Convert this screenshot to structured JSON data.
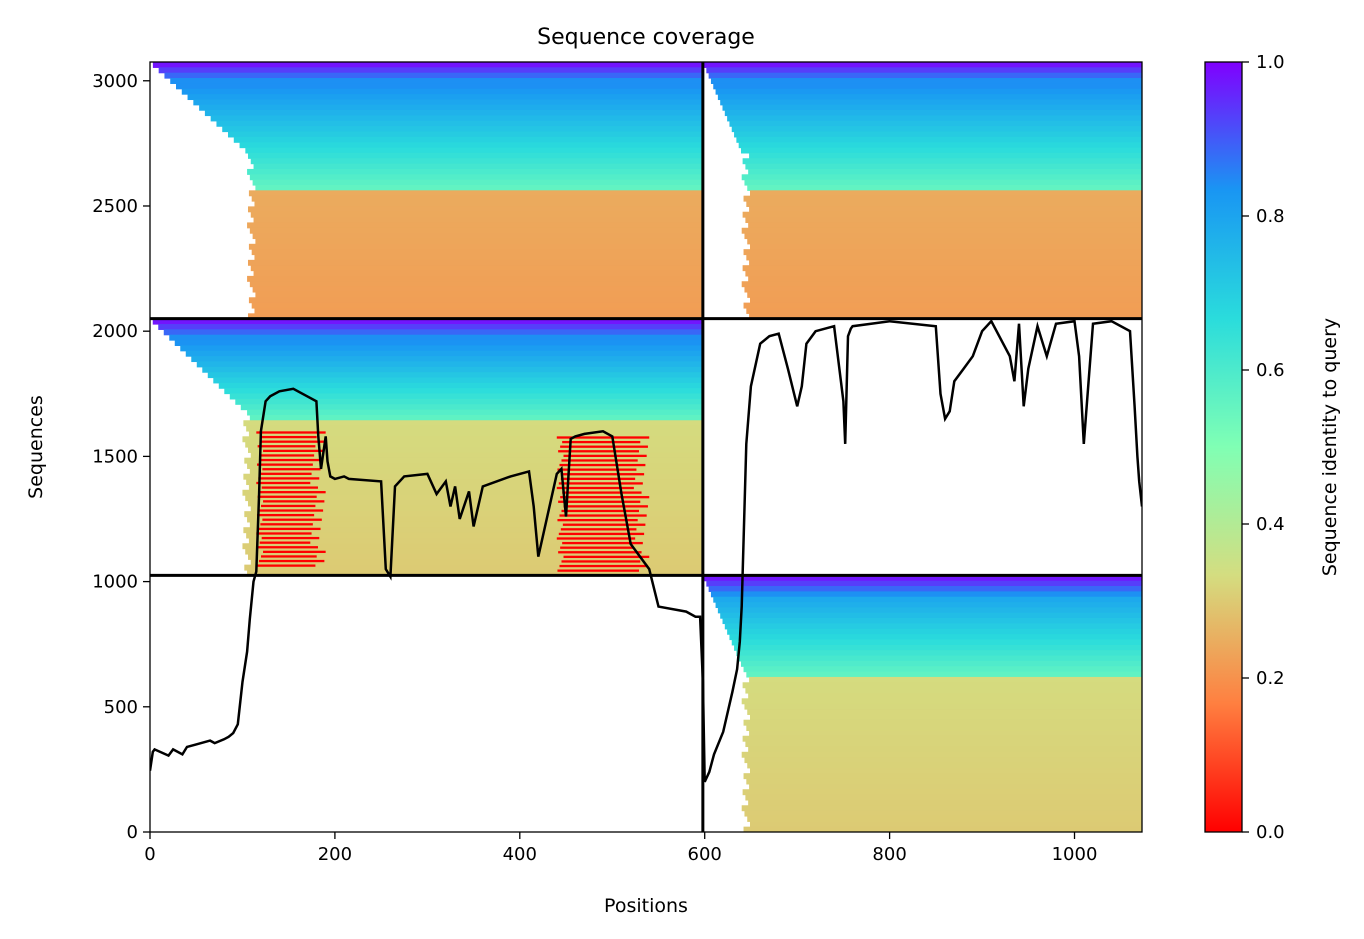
{
  "chart_data": {
    "type": "heatmap",
    "title": "Sequence coverage",
    "xlabel": "Positions",
    "ylabel": "Sequences",
    "xlim": [
      0,
      1073
    ],
    "ylim": [
      0,
      3075
    ],
    "x_ticks": [
      0,
      200,
      400,
      600,
      800,
      1000
    ],
    "y_ticks": [
      0,
      500,
      1000,
      1500,
      2000,
      2500,
      3000
    ],
    "grid": false,
    "colormap": "rainbow_r",
    "colorbar": {
      "label": "Sequence identity to query",
      "range": [
        0,
        1
      ],
      "ticks": [
        "0.0",
        "0.2",
        "0.4",
        "0.6",
        "0.8",
        "1.0"
      ],
      "colors": [
        "#ff0000",
        "#ff7f40",
        "#d4dd80",
        "#80ffb4",
        "#2adcdc",
        "#1996f3",
        "#8000ff"
      ]
    },
    "block_boundaries": {
      "x": [
        598
      ],
      "y": [
        1025,
        2050
      ]
    },
    "blocks": [
      {
        "x": [
          0,
          598
        ],
        "y": [
          2050,
          3075
        ],
        "start_x": 105,
        "start_x_upper": 0,
        "end_x": 598,
        "identity_top": 0.85,
        "identity_bottom": 0.22,
        "split_fraction": 0.5
      },
      {
        "x": [
          598,
          1073
        ],
        "y": [
          2050,
          3075
        ],
        "start_x": 640,
        "start_x_upper": 598,
        "end_x": 1073,
        "identity_top": 0.85,
        "identity_bottom": 0.22,
        "split_fraction": 0.5
      },
      {
        "x": [
          0,
          598
        ],
        "y": [
          1025,
          2050
        ],
        "start_x": 100,
        "start_x_upper": 0,
        "end_x": 598,
        "identity_top": 0.85,
        "identity_bottom": 0.3,
        "split_fraction": 0.4
      },
      {
        "x": [
          598,
          1073
        ],
        "y": [
          0,
          1025
        ],
        "start_x": 640,
        "start_x_upper": 598,
        "end_x": 1073,
        "identity_top": 0.8,
        "identity_bottom": 0.3,
        "split_fraction": 0.4
      }
    ],
    "red_regions": [
      {
        "x": [
          115,
          190
        ],
        "y": [
          1050,
          1600
        ],
        "identity": 0.0
      },
      {
        "x": [
          440,
          540
        ],
        "y": [
          1030,
          1580
        ],
        "identity": 0.0
      }
    ],
    "series": [
      {
        "type": "line",
        "color": "#000000",
        "x": [
          0,
          3,
          5,
          20,
          25,
          35,
          40,
          50,
          65,
          70,
          80,
          85,
          90,
          95,
          100,
          105,
          108,
          112,
          115,
          118,
          120,
          125,
          130,
          140,
          155,
          170,
          180,
          182,
          185,
          190,
          192,
          195,
          200,
          210,
          215,
          250,
          255,
          260,
          265,
          275,
          300,
          310,
          320,
          325,
          330,
          335,
          345,
          350,
          360,
          390,
          410,
          415,
          420,
          440,
          445,
          450,
          455,
          460,
          470,
          490,
          500,
          510,
          520,
          540,
          550,
          580,
          590,
          595,
          598,
          600,
          605,
          610,
          620,
          630,
          635,
          638,
          640,
          645,
          650,
          660,
          670,
          680,
          690,
          700,
          705,
          710,
          720,
          740,
          750,
          752,
          755,
          758,
          760,
          780,
          800,
          850,
          855,
          860,
          865,
          870,
          880,
          890,
          900,
          910,
          930,
          935,
          940,
          945,
          950,
          960,
          970,
          980,
          1000,
          1005,
          1010,
          1020,
          1040,
          1060,
          1065,
          1068,
          1070,
          1073
        ],
        "y": [
          245,
          320,
          330,
          305,
          330,
          310,
          340,
          350,
          365,
          355,
          370,
          380,
          395,
          430,
          600,
          720,
          850,
          1000,
          1040,
          1350,
          1600,
          1720,
          1740,
          1760,
          1770,
          1740,
          1720,
          1580,
          1450,
          1580,
          1480,
          1420,
          1410,
          1420,
          1410,
          1400,
          1050,
          1020,
          1380,
          1420,
          1430,
          1350,
          1400,
          1300,
          1380,
          1250,
          1360,
          1220,
          1380,
          1420,
          1440,
          1300,
          1100,
          1430,
          1450,
          1260,
          1570,
          1580,
          1590,
          1600,
          1580,
          1350,
          1150,
          1050,
          900,
          880,
          860,
          860,
          600,
          200,
          240,
          310,
          400,
          560,
          650,
          760,
          900,
          1550,
          1780,
          1950,
          1980,
          1990,
          1850,
          1700,
          1780,
          1950,
          2000,
          2020,
          1720,
          1550,
          1980,
          2010,
          2020,
          2030,
          2040,
          2020,
          1750,
          1650,
          1680,
          1800,
          1850,
          1900,
          2000,
          2040,
          1900,
          1800,
          2030,
          1700,
          1850,
          2020,
          1900,
          2030,
          2040,
          1900,
          1550,
          2030,
          2040,
          2000,
          1700,
          1500,
          1400,
          1300
        ]
      }
    ]
  }
}
